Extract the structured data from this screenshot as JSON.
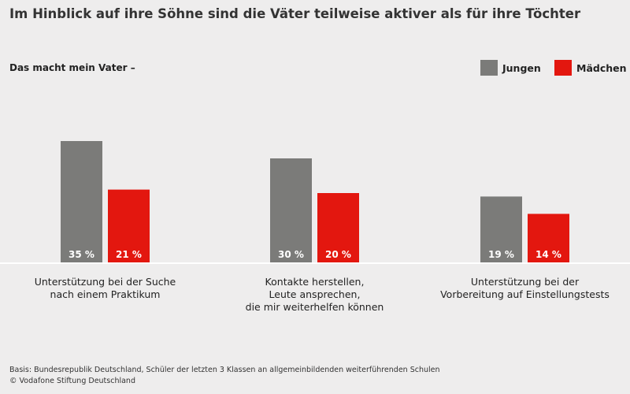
{
  "chart_data": {
    "type": "bar",
    "title": "Im Hinblick auf ihre Söhne sind die Väter teilweise aktiver als für ihre Töchter",
    "subtitle": "Das macht mein Vater –",
    "categories": [
      "Unterstützung bei der Suche\nnach einem Praktikum",
      "Kontakte herstellen,\nLeute ansprechen,\ndie mir weiterhelfen können",
      "Unterstützung bei der\nVorbereitung auf Einstellungstests"
    ],
    "series": [
      {
        "name": "Jungen",
        "color": "#7b7b79",
        "values": [
          35,
          30,
          19
        ],
        "labels": [
          "35 %",
          "30 %",
          "19 %"
        ]
      },
      {
        "name": "Mädchen",
        "color": "#e3170f",
        "values": [
          21,
          20,
          14
        ],
        "labels": [
          "21 %",
          "20 %",
          "14 %"
        ]
      }
    ],
    "legend_position": "top-right",
    "grid": false
  },
  "footer": {
    "basis": "Basis: Bundesrepublik Deutschland, Schüler der letzten 3 Klassen an allgemeinbildenden weiterführenden Schulen",
    "copyright": "© Vodafone Stiftung Deutschland"
  }
}
